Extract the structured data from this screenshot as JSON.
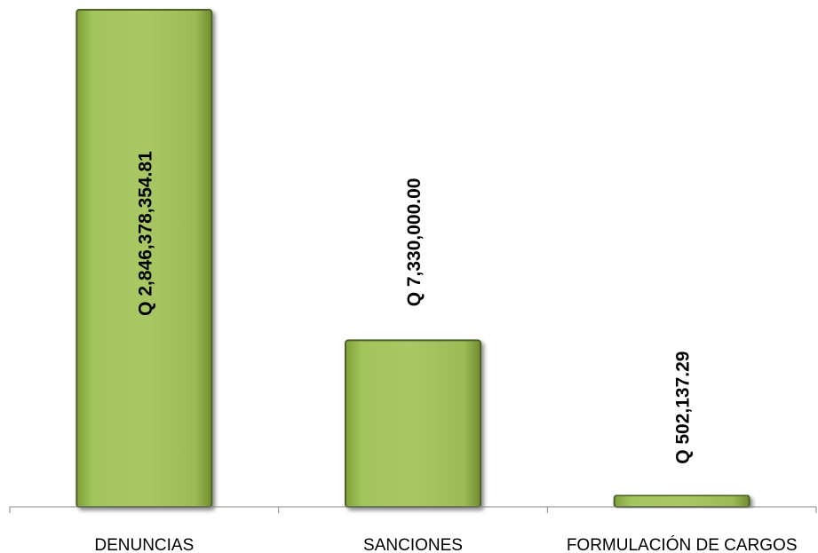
{
  "chart_data": {
    "type": "bar",
    "orientation": "vertical",
    "categories": [
      "DENUNCIAS",
      "SANCIONES",
      "FORMULACIÓN DE CARGOS"
    ],
    "values": [
      2846378354.81,
      7330000.0,
      502137.29
    ],
    "data_labels": [
      "Q 2,846,378,354.81",
      "Q 7,330,000.00",
      "Q 502,137.29"
    ],
    "title": "",
    "xlabel": "",
    "ylabel": "",
    "axis_break": true,
    "grid": false,
    "legend": "none",
    "bar_color": "#9BBB59",
    "bar_border_color": "#4F6228"
  }
}
